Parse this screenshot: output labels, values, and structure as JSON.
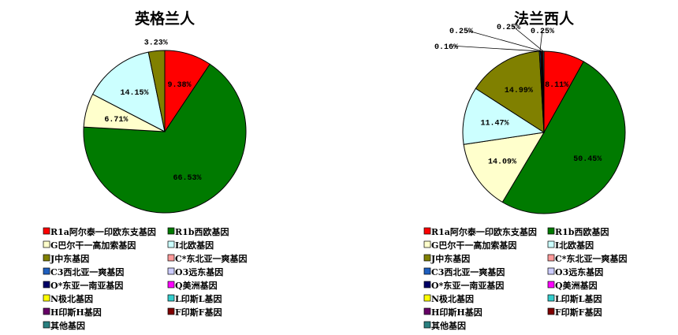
{
  "legend_colors": [
    "#ff0000",
    "#007a00",
    "#ffffcc",
    "#ccffff",
    "#808000",
    "#ff9999",
    "#1f5fbf",
    "#ccccff",
    "#000066",
    "#ff00ff",
    "#ffff00",
    "#33cccc",
    "#660066",
    "#800000",
    "#2a8080"
  ],
  "legend_labels": [
    "R1a阿尔泰一印欧东支基因",
    "R1b西欧基因",
    "G巴尔干一高加索基因",
    "I北欧基因",
    "J中东基因",
    "C*东北亚一爽基因",
    "C3西北亚一爽基因",
    "O3远东基因",
    "O*东亚一南亚基因",
    "Q美洲基因",
    "N极北基因",
    "L印斯L基因",
    "H印斯H基因",
    "F印斯F基因",
    "其他基因"
  ],
  "chart_data": [
    {
      "type": "pie",
      "title": "英格兰人",
      "slices": [
        {
          "category": "R1a阿尔泰一印欧东支基因",
          "value": 9.38,
          "label": "9.38%"
        },
        {
          "category": "R1b西欧基因",
          "value": 66.53,
          "label": "66.53%"
        },
        {
          "category": "G巴尔干一高加索基因",
          "value": 6.71,
          "label": "6.71%"
        },
        {
          "category": "I北欧基因",
          "value": 14.15,
          "label": "14.15%"
        },
        {
          "category": "J中东基因",
          "value": 3.23,
          "label": "3.23%"
        }
      ],
      "legend_placement": "bottom"
    },
    {
      "type": "pie",
      "title": "法兰西人",
      "slices": [
        {
          "category": "R1a阿尔泰一印欧东支基因",
          "value": 8.11,
          "label": "8.11%"
        },
        {
          "category": "R1b西欧基因",
          "value": 50.45,
          "label": "50.45%"
        },
        {
          "category": "G巴尔干一高加索基因",
          "value": 14.09,
          "label": "14.09%"
        },
        {
          "category": "I北欧基因",
          "value": 11.47,
          "label": "11.47%"
        },
        {
          "category": "J中东基因",
          "value": 14.99,
          "label": "14.99%"
        },
        {
          "category": "C3西北亚一爽基因",
          "value": 0.25,
          "label": "0.25%"
        },
        {
          "category": "O*东亚一南亚基因",
          "value": 0.16,
          "label": "0.16%"
        },
        {
          "category": "F印斯F基因",
          "value": 0.25,
          "label": "0.25%"
        },
        {
          "category": "其他基因",
          "value": 0.25,
          "label": "0.25%"
        }
      ],
      "legend_placement": "bottom"
    }
  ]
}
